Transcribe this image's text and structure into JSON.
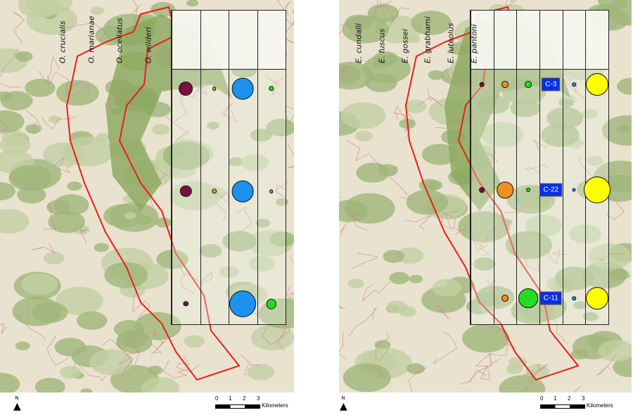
{
  "maps": [
    {
      "columns": [
        "O. crucialis",
        "O. marianae",
        "O. ocellatus",
        "O. wilderi"
      ],
      "colors": [
        "#7a1040",
        "#f09020",
        "#1e90f0",
        "#22dd22"
      ],
      "rows": [
        {
          "sizes": [
            0.5,
            0.1,
            0.8,
            0.15
          ]
        },
        {
          "sizes": [
            0.4,
            0.15,
            0.8,
            0.1
          ]
        },
        {
          "sizes": [
            0.15,
            0,
            1.0,
            0.35
          ]
        }
      ]
    },
    {
      "columns": [
        "E. cundalli",
        "E. fuscus",
        "E. gossei",
        "E. grabhami",
        "E. luteolus",
        "E. pantoni"
      ],
      "colors": [
        "#7a1040",
        "#f09020",
        "#22dd22",
        "#0a2ee8",
        "#1e90f0",
        "#ffff00"
      ],
      "rows": [
        {
          "sizes": [
            0.13,
            0.22,
            0.22,
            0,
            0.1,
            0.83
          ],
          "label": "C-3"
        },
        {
          "sizes": [
            0.16,
            0.6,
            0.11,
            0,
            0.08,
            1.0
          ],
          "label": "C-22"
        },
        {
          "sizes": [
            0,
            0.22,
            0.72,
            0,
            0.1,
            0.83
          ],
          "label": "C-11"
        }
      ]
    }
  ],
  "north_label": "N",
  "scale": {
    "ticks": [
      "0",
      "1",
      "2",
      "3"
    ],
    "unit": "Kilometers"
  }
}
